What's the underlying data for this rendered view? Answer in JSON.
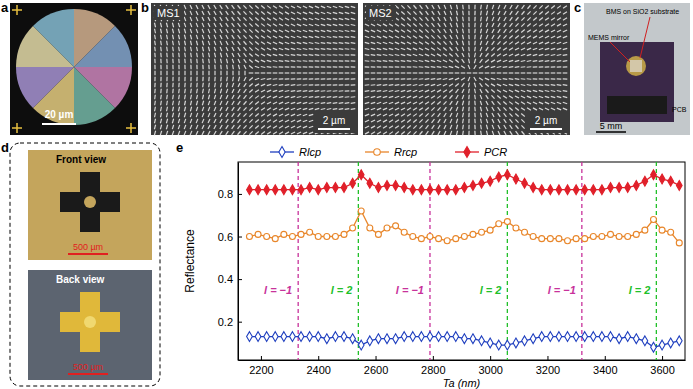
{
  "panels": {
    "a": {
      "label": "a",
      "scale_bar": "20 µm"
    },
    "b": {
      "label": "b",
      "images": [
        "MS1",
        "MS2"
      ],
      "scale_bar": "2 µm"
    },
    "c": {
      "label": "c",
      "labels": [
        "MEMS mirror",
        "BMS on SiO2 substrate",
        "PCB"
      ],
      "scale_bar": "5 mm"
    },
    "d": {
      "label": "d",
      "views": [
        {
          "title": "Front view",
          "scale_bar": "500 µm"
        },
        {
          "title": "Back view",
          "scale_bar": "500 µm"
        }
      ]
    },
    "e": {
      "label": "e"
    }
  },
  "chart_data": {
    "type": "line",
    "x_label": "Ta (nm)",
    "y_label": "Reflectance",
    "x": [
      2160,
      2190,
      2220,
      2250,
      2280,
      2310,
      2340,
      2370,
      2400,
      2430,
      2460,
      2490,
      2520,
      2550,
      2580,
      2610,
      2640,
      2670,
      2700,
      2730,
      2760,
      2790,
      2820,
      2850,
      2880,
      2910,
      2940,
      2970,
      3000,
      3030,
      3060,
      3090,
      3120,
      3150,
      3180,
      3210,
      3240,
      3270,
      3300,
      3330,
      3360,
      3390,
      3420,
      3450,
      3480,
      3510,
      3540,
      3570,
      3600,
      3630,
      3660
    ],
    "series": [
      {
        "name": "Rlcp",
        "color": "#1f3fbf",
        "marker": "diamond-open",
        "values": [
          0.13,
          0.13,
          0.13,
          0.13,
          0.13,
          0.13,
          0.13,
          0.13,
          0.13,
          0.12,
          0.13,
          0.13,
          0.12,
          0.09,
          0.11,
          0.12,
          0.12,
          0.12,
          0.13,
          0.13,
          0.13,
          0.13,
          0.13,
          0.13,
          0.13,
          0.12,
          0.12,
          0.11,
          0.1,
          0.09,
          0.09,
          0.1,
          0.11,
          0.12,
          0.13,
          0.13,
          0.13,
          0.13,
          0.13,
          0.13,
          0.13,
          0.13,
          0.13,
          0.12,
          0.13,
          0.12,
          0.11,
          0.08,
          0.09,
          0.1,
          0.11
        ]
      },
      {
        "name": "Rrcp",
        "color": "#e8862a",
        "marker": "circle-open",
        "values": [
          0.6,
          0.61,
          0.6,
          0.59,
          0.61,
          0.6,
          0.61,
          0.62,
          0.6,
          0.6,
          0.6,
          0.61,
          0.64,
          0.72,
          0.64,
          0.61,
          0.64,
          0.65,
          0.62,
          0.6,
          0.59,
          0.6,
          0.59,
          0.58,
          0.59,
          0.6,
          0.61,
          0.62,
          0.63,
          0.66,
          0.67,
          0.64,
          0.62,
          0.6,
          0.59,
          0.59,
          0.59,
          0.58,
          0.59,
          0.59,
          0.6,
          0.6,
          0.61,
          0.6,
          0.6,
          0.61,
          0.63,
          0.68,
          0.63,
          0.62,
          0.57
        ]
      },
      {
        "name": "PCR",
        "color": "#e0202a",
        "marker": "diamond",
        "values": [
          0.82,
          0.82,
          0.82,
          0.82,
          0.82,
          0.82,
          0.82,
          0.83,
          0.82,
          0.83,
          0.83,
          0.83,
          0.85,
          0.89,
          0.85,
          0.83,
          0.84,
          0.84,
          0.83,
          0.82,
          0.82,
          0.82,
          0.82,
          0.82,
          0.82,
          0.83,
          0.84,
          0.85,
          0.86,
          0.88,
          0.89,
          0.87,
          0.85,
          0.83,
          0.82,
          0.82,
          0.82,
          0.82,
          0.82,
          0.82,
          0.82,
          0.82,
          0.83,
          0.83,
          0.83,
          0.84,
          0.86,
          0.89,
          0.87,
          0.86,
          0.84
        ]
      }
    ],
    "annotations": [
      {
        "x": 2330,
        "text": "l = −1",
        "color": "#c8329b"
      },
      {
        "x": 2540,
        "text": "l = 2",
        "color": "#22c02a"
      },
      {
        "x": 2790,
        "text": "l = −1",
        "color": "#c8329b"
      },
      {
        "x": 3060,
        "text": "l = 2",
        "color": "#22c02a"
      },
      {
        "x": 3320,
        "text": "l = −1",
        "color": "#c8329b"
      },
      {
        "x": 3580,
        "text": "l = 2",
        "color": "#22c02a"
      }
    ],
    "xlim": [
      2120,
      3680
    ],
    "xticks": [
      2200,
      2400,
      2600,
      2800,
      3000,
      3200,
      3400,
      3600
    ],
    "ylim": [
      0.02,
      0.95
    ],
    "yticks": [
      0.2,
      0.4,
      0.6,
      0.8
    ],
    "legend": "top"
  }
}
